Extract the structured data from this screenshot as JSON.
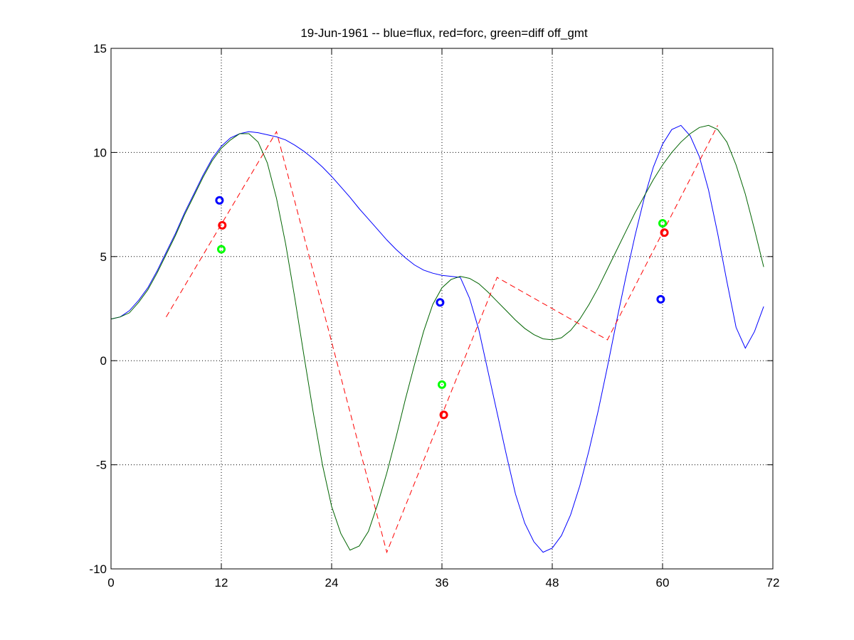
{
  "chart_data": {
    "type": "line",
    "title": "19-Jun-1961 -- blue=flux, red=forc, green=diff off_gmt",
    "xlim": [
      0,
      72
    ],
    "ylim": [
      -10,
      15
    ],
    "xticks": [
      0,
      12,
      24,
      36,
      48,
      60,
      72
    ],
    "yticks": [
      -10,
      -5,
      0,
      5,
      10,
      15
    ],
    "grid": true,
    "series": [
      {
        "color": "#0000ff",
        "style": "solid",
        "x": [
          0,
          1,
          2,
          3,
          4,
          5,
          6,
          7,
          8,
          9,
          10,
          11,
          12,
          13,
          14,
          15,
          16,
          17,
          18,
          19,
          20,
          21,
          22,
          23,
          24,
          25,
          26,
          27,
          28,
          29,
          30,
          31,
          32,
          33,
          34,
          35,
          36,
          37,
          38,
          39,
          40,
          41,
          42,
          43,
          44,
          45,
          46,
          47,
          48,
          49,
          50,
          51,
          52,
          53,
          54,
          55,
          56,
          57,
          58,
          59,
          60,
          61,
          62,
          63,
          64,
          65,
          66,
          67,
          68,
          69,
          70,
          71
        ],
        "y": [
          2.0,
          2.1,
          2.4,
          2.9,
          3.5,
          4.3,
          5.2,
          6.1,
          7.1,
          8.0,
          8.9,
          9.7,
          10.3,
          10.7,
          10.9,
          11.0,
          10.95,
          10.85,
          10.75,
          10.6,
          10.35,
          10.05,
          9.7,
          9.3,
          8.85,
          8.35,
          7.85,
          7.3,
          6.8,
          6.3,
          5.8,
          5.35,
          4.95,
          4.6,
          4.35,
          4.2,
          4.1,
          4.05,
          4.0,
          3.0,
          1.5,
          -0.5,
          -2.5,
          -4.5,
          -6.4,
          -7.8,
          -8.7,
          -9.2,
          -9.0,
          -8.4,
          -7.4,
          -6.0,
          -4.3,
          -2.4,
          -0.3,
          1.9,
          4.0,
          6.0,
          7.8,
          9.3,
          10.4,
          11.1,
          11.3,
          10.8,
          9.8,
          8.2,
          6.1,
          3.8,
          1.6,
          0.6,
          1.4,
          2.6
        ]
      },
      {
        "color": "#006400",
        "style": "solid",
        "x": [
          0,
          1,
          2,
          3,
          4,
          5,
          6,
          7,
          8,
          9,
          10,
          11,
          12,
          13,
          14,
          15,
          16,
          17,
          18,
          19,
          20,
          21,
          22,
          23,
          24,
          25,
          26,
          27,
          28,
          29,
          30,
          31,
          32,
          33,
          34,
          35,
          36,
          37,
          38,
          39,
          40,
          41,
          42,
          43,
          44,
          45,
          46,
          47,
          48,
          49,
          50,
          51,
          52,
          53,
          54,
          55,
          56,
          57,
          58,
          59,
          60,
          61,
          62,
          63,
          64,
          65,
          66,
          67,
          68,
          69,
          70,
          71
        ],
        "y": [
          2.0,
          2.1,
          2.3,
          2.8,
          3.4,
          4.2,
          5.1,
          6.0,
          7.0,
          7.9,
          8.8,
          9.6,
          10.2,
          10.6,
          10.9,
          10.9,
          10.5,
          9.5,
          7.8,
          5.6,
          3.0,
          0.2,
          -2.5,
          -5.0,
          -7.0,
          -8.3,
          -9.1,
          -8.9,
          -8.2,
          -6.9,
          -5.4,
          -3.7,
          -1.9,
          -0.2,
          1.4,
          2.7,
          3.5,
          3.9,
          4.05,
          3.95,
          3.7,
          3.3,
          2.85,
          2.4,
          1.95,
          1.55,
          1.25,
          1.05,
          1.0,
          1.1,
          1.45,
          2.0,
          2.7,
          3.5,
          4.4,
          5.3,
          6.2,
          7.1,
          7.9,
          8.7,
          9.4,
          10.0,
          10.5,
          10.9,
          11.2,
          11.3,
          11.1,
          10.5,
          9.4,
          8.0,
          6.3,
          4.5
        ]
      },
      {
        "color": "#ff0000",
        "style": "dashed",
        "x": [
          6,
          18,
          30,
          42,
          54,
          66
        ],
        "y": [
          2.1,
          11.0,
          -9.2,
          4.0,
          1.0,
          11.3
        ]
      }
    ],
    "markers": [
      {
        "color": "#0000ff",
        "x": 11.8,
        "y": 7.7
      },
      {
        "color": "#ff0000",
        "x": 12.1,
        "y": 6.5
      },
      {
        "color": "#00ff00",
        "x": 12.0,
        "y": 5.35
      },
      {
        "color": "#0000ff",
        "x": 35.8,
        "y": 2.8
      },
      {
        "color": "#00ff00",
        "x": 36.0,
        "y": -1.15
      },
      {
        "color": "#ff0000",
        "x": 36.2,
        "y": -2.6
      },
      {
        "color": "#0000ff",
        "x": 59.8,
        "y": 2.95
      },
      {
        "color": "#00ff00",
        "x": 60.0,
        "y": 6.6
      },
      {
        "color": "#ff0000",
        "x": 60.2,
        "y": 6.15
      }
    ]
  }
}
